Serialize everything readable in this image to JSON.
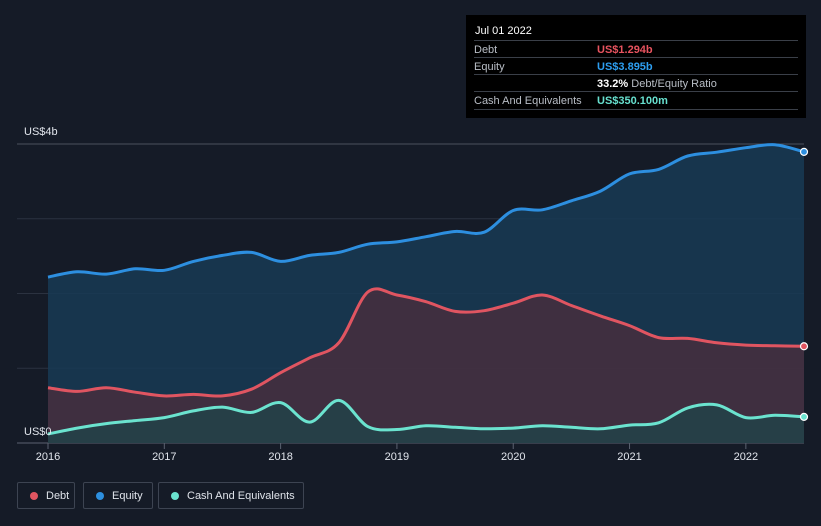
{
  "tooltip": {
    "date": "Jul 01 2022",
    "rows": [
      {
        "label": "Debt",
        "value": "US$1.294b",
        "color": "#e8535f"
      },
      {
        "label": "Equity",
        "value": "US$3.895b",
        "color": "#2d9ef0"
      },
      {
        "label": "",
        "value": "33.2%",
        "suffix": "Debt/Equity Ratio"
      },
      {
        "label": "Cash And Equivalents",
        "value": "US$350.100m",
        "color": "#67e0cf"
      }
    ]
  },
  "legend": [
    {
      "label": "Debt",
      "color": "#e05561"
    },
    {
      "label": "Equity",
      "color": "#2d8fe0"
    },
    {
      "label": "Cash And Equivalents",
      "color": "#6be3cf"
    }
  ],
  "chart_data": {
    "type": "area",
    "title": "",
    "xlabel": "",
    "ylabel": "",
    "y_top_label": "US$4b",
    "y_bottom_label": "US$0",
    "ylim": [
      0,
      4
    ],
    "xlim": [
      2016.0,
      2022.5
    ],
    "x_ticks": [
      "2016",
      "2017",
      "2018",
      "2019",
      "2020",
      "2021",
      "2022"
    ],
    "x_tick_values": [
      2016,
      2017,
      2018,
      2019,
      2020,
      2021,
      2022
    ],
    "gridlines": [
      0,
      1,
      2,
      3,
      4
    ],
    "series": [
      {
        "name": "Equity",
        "color": "#2d8fe0",
        "x": [
          2016.0,
          2016.25,
          2016.5,
          2016.75,
          2017.0,
          2017.25,
          2017.5,
          2017.75,
          2018.0,
          2018.25,
          2018.5,
          2018.75,
          2019.0,
          2019.25,
          2019.5,
          2019.75,
          2020.0,
          2020.25,
          2020.5,
          2020.75,
          2021.0,
          2021.25,
          2021.5,
          2021.75,
          2022.0,
          2022.25,
          2022.5
        ],
        "values": [
          2.22,
          2.29,
          2.26,
          2.33,
          2.31,
          2.43,
          2.51,
          2.55,
          2.43,
          2.51,
          2.55,
          2.66,
          2.69,
          2.76,
          2.83,
          2.82,
          3.11,
          3.12,
          3.24,
          3.37,
          3.6,
          3.66,
          3.84,
          3.89,
          3.95,
          3.99,
          3.895
        ]
      },
      {
        "name": "Debt",
        "color": "#e05561",
        "x": [
          2016.0,
          2016.25,
          2016.5,
          2016.75,
          2017.0,
          2017.25,
          2017.5,
          2017.75,
          2018.0,
          2018.25,
          2018.5,
          2018.75,
          2019.0,
          2019.25,
          2019.5,
          2019.75,
          2020.0,
          2020.25,
          2020.5,
          2020.75,
          2021.0,
          2021.25,
          2021.5,
          2021.75,
          2022.0,
          2022.25,
          2022.5
        ],
        "values": [
          0.74,
          0.69,
          0.74,
          0.68,
          0.63,
          0.65,
          0.63,
          0.72,
          0.94,
          1.14,
          1.34,
          2.02,
          1.98,
          1.89,
          1.76,
          1.77,
          1.87,
          1.98,
          1.84,
          1.7,
          1.57,
          1.41,
          1.4,
          1.34,
          1.31,
          1.3,
          1.294
        ]
      },
      {
        "name": "Cash And Equivalents",
        "color": "#6be3cf",
        "x": [
          2016.0,
          2016.25,
          2016.5,
          2016.75,
          2017.0,
          2017.25,
          2017.5,
          2017.75,
          2018.0,
          2018.25,
          2018.5,
          2018.75,
          2019.0,
          2019.25,
          2019.5,
          2019.75,
          2020.0,
          2020.25,
          2020.5,
          2020.75,
          2021.0,
          2021.25,
          2021.5,
          2021.75,
          2022.0,
          2022.25,
          2022.5
        ],
        "values": [
          0.12,
          0.2,
          0.26,
          0.3,
          0.34,
          0.43,
          0.48,
          0.41,
          0.54,
          0.28,
          0.57,
          0.22,
          0.18,
          0.23,
          0.21,
          0.19,
          0.2,
          0.23,
          0.21,
          0.19,
          0.24,
          0.27,
          0.47,
          0.51,
          0.34,
          0.37,
          0.35
        ]
      }
    ]
  }
}
